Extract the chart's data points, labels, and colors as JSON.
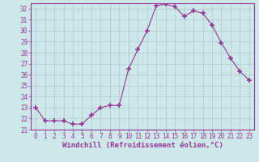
{
  "hours": [
    0,
    1,
    2,
    3,
    4,
    5,
    6,
    7,
    8,
    9,
    10,
    11,
    12,
    13,
    14,
    15,
    16,
    17,
    18,
    19,
    20,
    21,
    22,
    23
  ],
  "values": [
    23.0,
    21.8,
    21.8,
    21.8,
    21.5,
    21.5,
    22.3,
    23.0,
    23.2,
    23.2,
    26.5,
    28.3,
    30.0,
    32.3,
    32.4,
    32.2,
    31.3,
    31.8,
    31.6,
    30.5,
    28.9,
    27.5,
    26.3,
    25.5
  ],
  "line_color": "#993399",
  "marker": "+",
  "marker_size": 4,
  "bg_color": "#cce8e8",
  "grid_color": "#aacccc",
  "xlabel": "Windchill (Refroidissement éolien,°C)",
  "ylabel": "",
  "ylim": [
    21,
    32.5
  ],
  "xlim": [
    -0.5,
    23.5
  ],
  "yticks": [
    21,
    22,
    23,
    24,
    25,
    26,
    27,
    28,
    29,
    30,
    31,
    32
  ],
  "xticks": [
    0,
    1,
    2,
    3,
    4,
    5,
    6,
    7,
    8,
    9,
    10,
    11,
    12,
    13,
    14,
    15,
    16,
    17,
    18,
    19,
    20,
    21,
    22,
    23
  ],
  "tick_label_fontsize": 5.5,
  "xlabel_fontsize": 6.5,
  "spine_color": "#993399",
  "spine_linewidth": 0.8
}
